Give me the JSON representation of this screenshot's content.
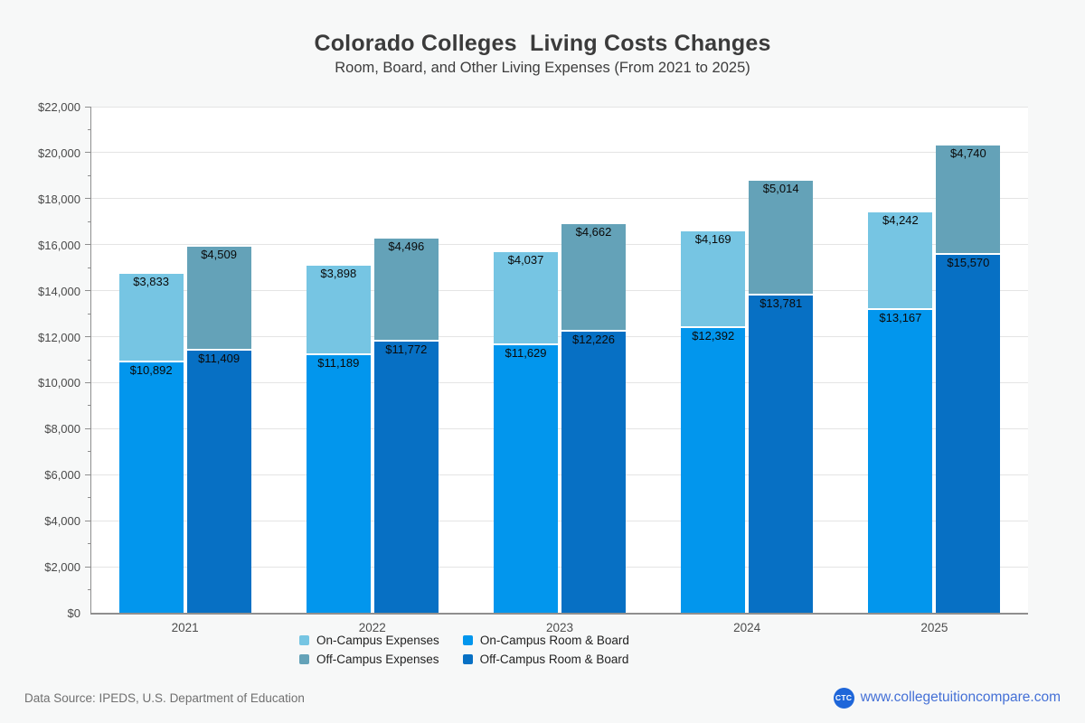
{
  "title": "Colorado Colleges  Living Costs Changes",
  "subtitle": "Room, Board, and Other Living Expenses (From 2021 to 2025)",
  "footer": {
    "data_source": "Data Source: IPEDS, U.S. Department of Education",
    "website": "www.collegetuitioncompare.com",
    "logo_text": "CTC"
  },
  "colors": {
    "on_campus_expenses": "#76c5e3",
    "on_campus_room_board": "#0296ed",
    "off_campus_expenses": "#64a2b8",
    "off_campus_room_board": "#0770c4",
    "grid": "#e4e4e4",
    "axis": "#8f8f8f",
    "website_blue": "#4470d6",
    "logo_blue": "#1e66d9"
  },
  "chart_data": {
    "type": "bar",
    "stacked": true,
    "grid": true,
    "legend_position": "bottom",
    "categories": [
      "2021",
      "2022",
      "2023",
      "2024",
      "2025"
    ],
    "series": [
      {
        "name": "On-Campus Room & Board",
        "group": "on-campus",
        "stack_order": "bottom",
        "color_key": "on_campus_room_board",
        "values": [
          10892,
          11189,
          11629,
          12392,
          13167
        ]
      },
      {
        "name": "On-Campus Expenses",
        "group": "on-campus",
        "stack_order": "top",
        "color_key": "on_campus_expenses",
        "values": [
          3833,
          3898,
          4037,
          4169,
          4242
        ]
      },
      {
        "name": "Off-Campus Room & Board",
        "group": "off-campus",
        "stack_order": "bottom",
        "color_key": "off_campus_room_board",
        "values": [
          11409,
          11772,
          12226,
          13781,
          15570
        ]
      },
      {
        "name": "Off-Campus Expenses",
        "group": "off-campus",
        "stack_order": "top",
        "color_key": "off_campus_expenses",
        "values": [
          4509,
          4496,
          4662,
          5014,
          4740
        ]
      }
    ],
    "ylim": [
      0,
      22000
    ],
    "y_major_step": 2000,
    "y_minor_step": 1000,
    "y_tick_prefix": "$",
    "xlabel": "",
    "ylabel": ""
  },
  "legend_items": [
    {
      "label": "On-Campus Expenses",
      "color_key": "on_campus_expenses"
    },
    {
      "label": "On-Campus Room & Board",
      "color_key": "on_campus_room_board"
    },
    {
      "label": "Off-Campus Expenses",
      "color_key": "off_campus_expenses"
    },
    {
      "label": "Off-Campus Room & Board",
      "color_key": "off_campus_room_board"
    }
  ]
}
